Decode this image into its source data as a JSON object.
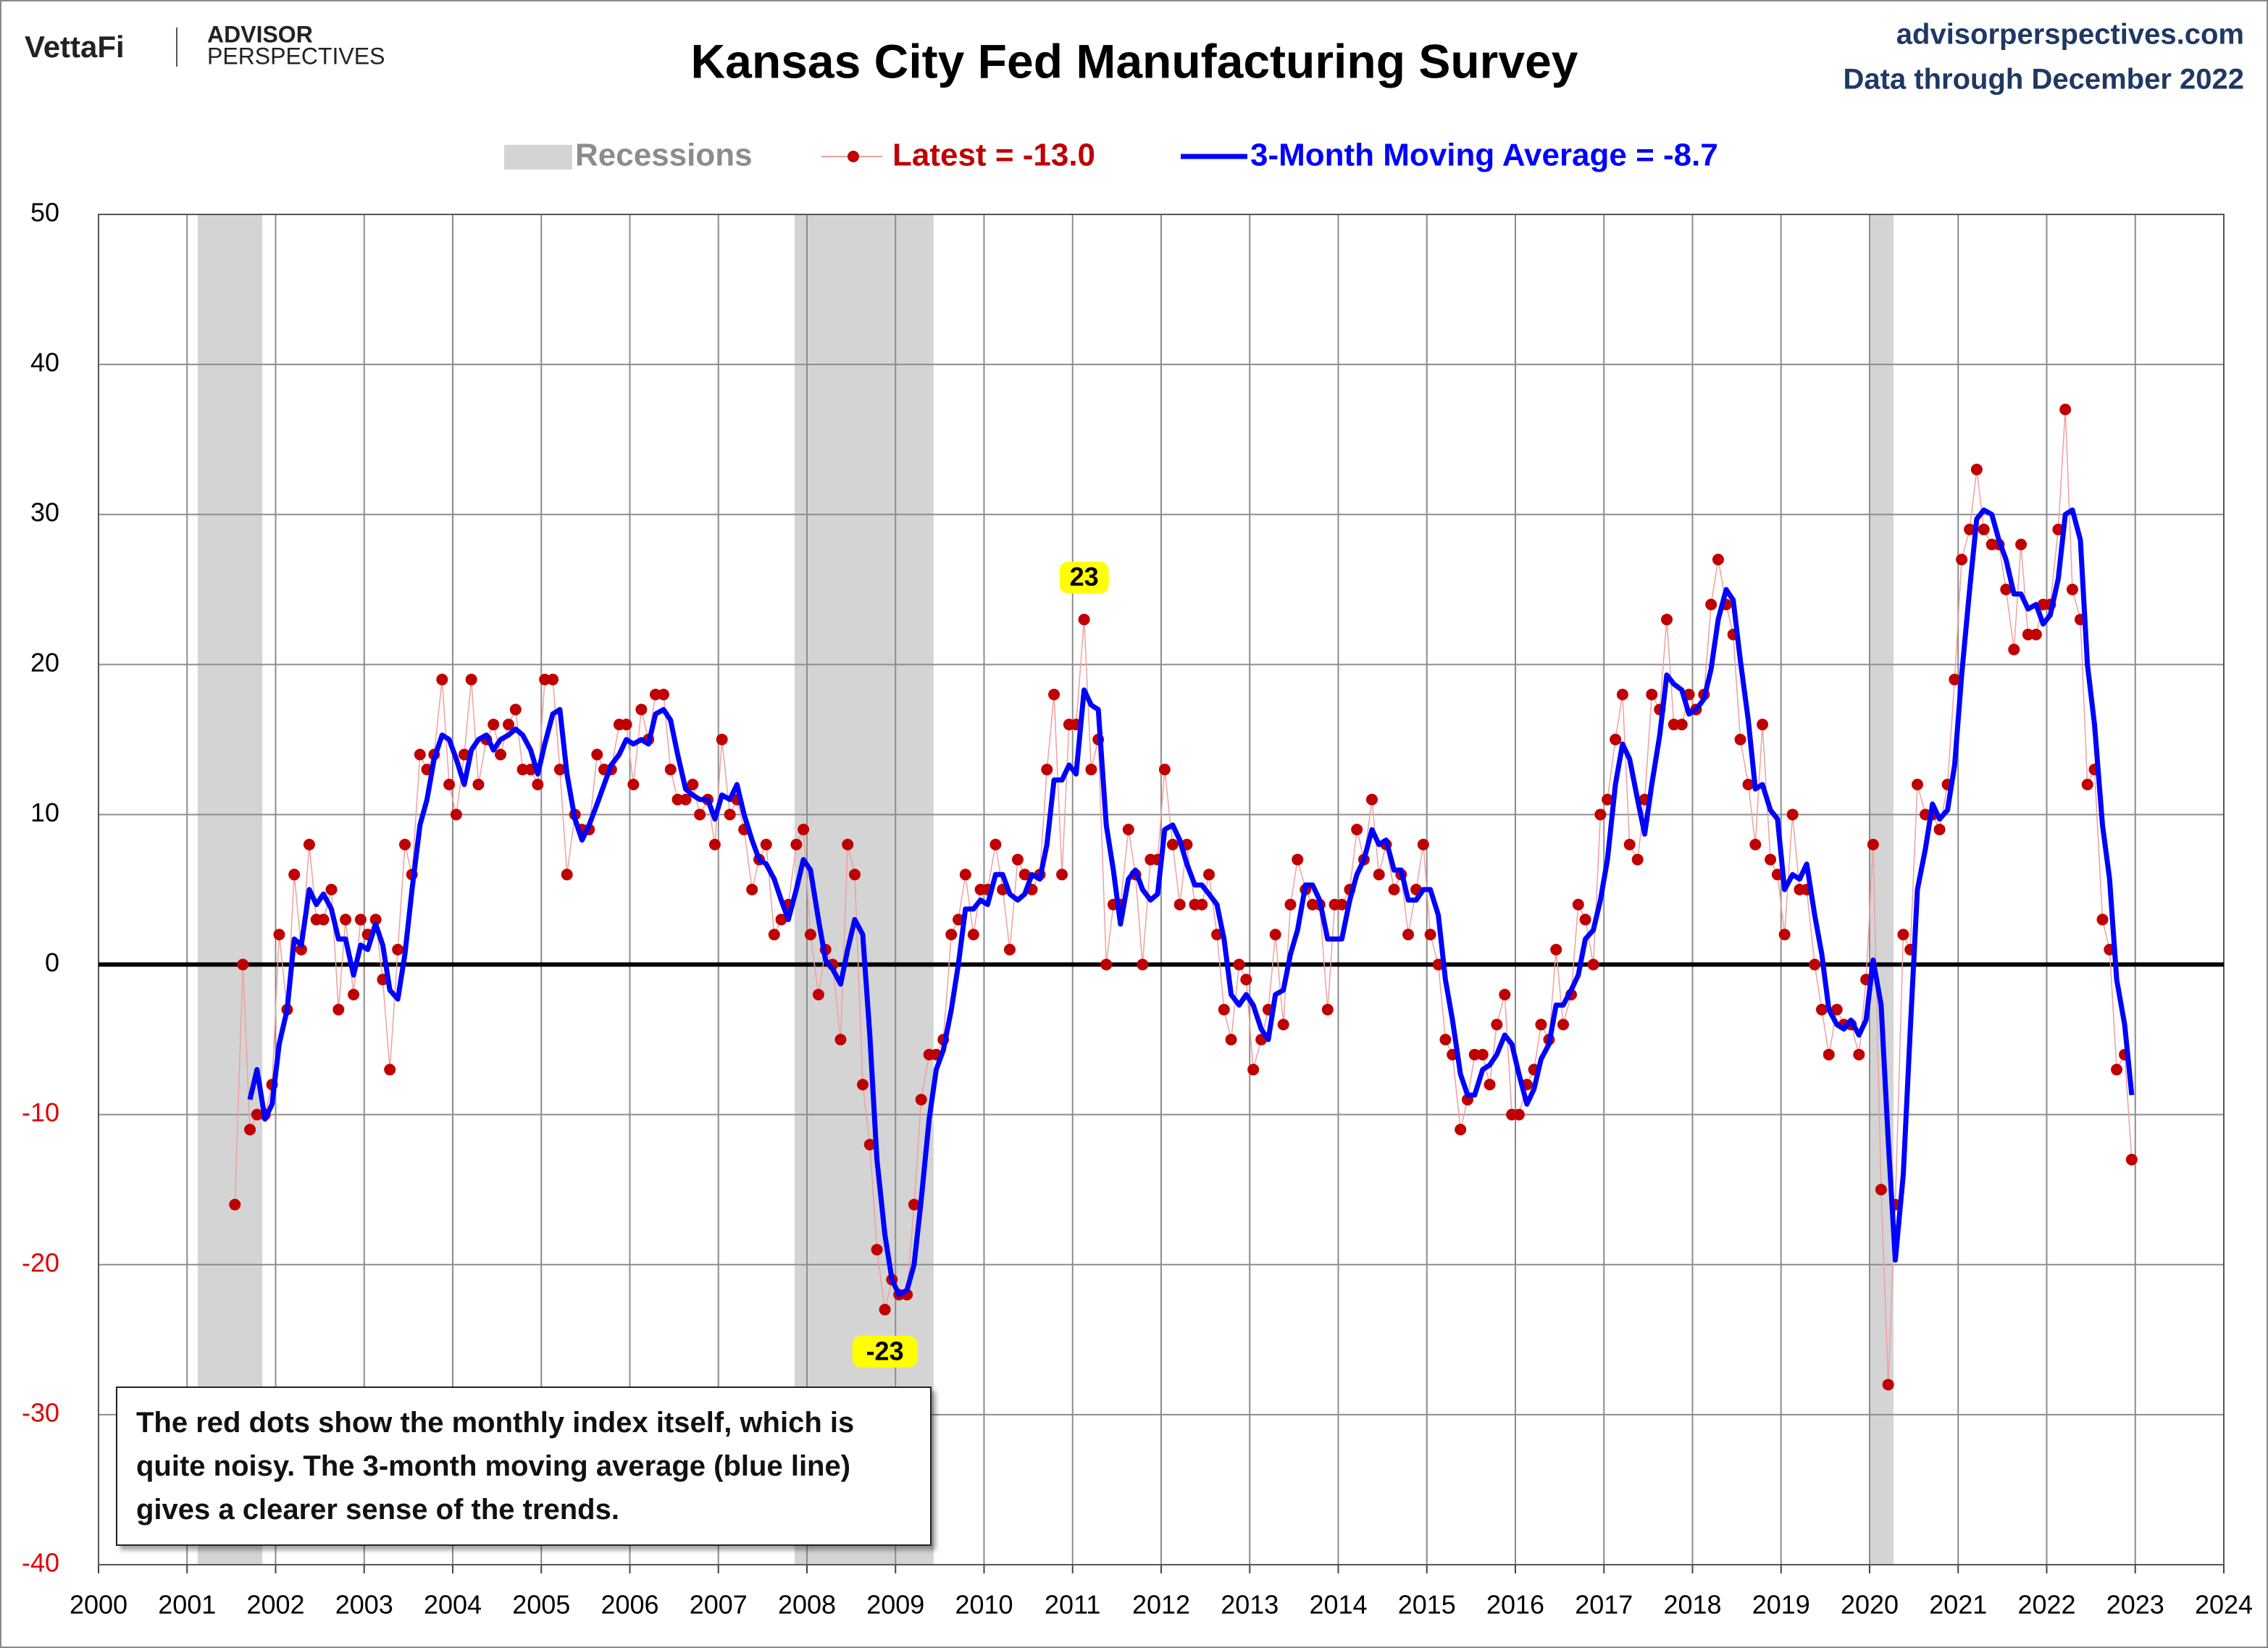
{
  "header": {
    "brand": "VettaFi",
    "brand2_line1": "ADVISOR",
    "brand2_line2": "PERSPECTIVES",
    "site": "advisorperspectives.com",
    "data_through": "Data through December 2022"
  },
  "note": "The red dots show the monthly  index itself, which is quite noisy. The 3-month moving average (blue line) gives a clearer sense of the trends.",
  "chart_data": {
    "type": "line",
    "title": "Kansas City Fed Manufacturing Survey",
    "recession_label": "Recessions",
    "recession_color": "#d4d4d4",
    "recessions": [
      [
        2001.12,
        2001.85
      ],
      [
        2007.86,
        2009.43
      ],
      [
        2020.0,
        2020.27
      ]
    ],
    "xlim": [
      2000,
      2024
    ],
    "xticks": [
      2000,
      2001,
      2002,
      2003,
      2004,
      2005,
      2006,
      2007,
      2008,
      2009,
      2010,
      2011,
      2012,
      2013,
      2014,
      2015,
      2016,
      2017,
      2018,
      2019,
      2020,
      2021,
      2022,
      2023,
      2024
    ],
    "ylim": [
      -40,
      50
    ],
    "yticks": [
      -40,
      -30,
      -20,
      -10,
      0,
      10,
      20,
      30,
      40,
      50
    ],
    "negative_tick_color": "#e00000",
    "grid": true,
    "x": [
      2001.54,
      2001.63,
      2001.71,
      2001.79,
      2001.88,
      2001.96,
      2002.04,
      2002.13,
      2002.21,
      2002.29,
      2002.38,
      2002.46,
      2002.54,
      2002.63,
      2002.71,
      2002.79,
      2002.88,
      2002.96,
      2003.04,
      2003.13,
      2003.21,
      2003.29,
      2003.38,
      2003.46,
      2003.54,
      2003.63,
      2003.71,
      2003.79,
      2003.88,
      2003.96,
      2004.04,
      2004.13,
      2004.21,
      2004.29,
      2004.38,
      2004.46,
      2004.54,
      2004.63,
      2004.71,
      2004.79,
      2004.88,
      2004.96,
      2005.04,
      2005.13,
      2005.21,
      2005.29,
      2005.38,
      2005.46,
      2005.54,
      2005.63,
      2005.71,
      2005.79,
      2005.88,
      2005.96,
      2006.04,
      2006.13,
      2006.21,
      2006.29,
      2006.38,
      2006.46,
      2006.54,
      2006.63,
      2006.71,
      2006.79,
      2006.88,
      2006.96,
      2007.04,
      2007.13,
      2007.21,
      2007.29,
      2007.38,
      2007.46,
      2007.54,
      2007.63,
      2007.71,
      2007.79,
      2007.88,
      2007.96,
      2008.04,
      2008.13,
      2008.21,
      2008.29,
      2008.38,
      2008.46,
      2008.54,
      2008.63,
      2008.71,
      2008.79,
      2008.88,
      2008.96,
      2009.04,
      2009.13,
      2009.21,
      2009.29,
      2009.38,
      2009.46,
      2009.54,
      2009.63,
      2009.71,
      2009.79,
      2009.88,
      2009.96,
      2010.04,
      2010.13,
      2010.21,
      2010.29,
      2010.38,
      2010.46,
      2010.54,
      2010.63,
      2010.71,
      2010.79,
      2010.88,
      2010.96,
      2011.04,
      2011.13,
      2011.21,
      2011.29,
      2011.38,
      2011.46,
      2011.54,
      2011.63,
      2011.71,
      2011.79,
      2011.88,
      2011.96,
      2012.04,
      2012.13,
      2012.21,
      2012.29,
      2012.38,
      2012.46,
      2012.54,
      2012.63,
      2012.71,
      2012.79,
      2012.88,
      2012.96,
      2013.04,
      2013.13,
      2013.21,
      2013.29,
      2013.38,
      2013.46,
      2013.54,
      2013.63,
      2013.71,
      2013.79,
      2013.88,
      2013.96,
      2014.04,
      2014.13,
      2014.21,
      2014.29,
      2014.38,
      2014.46,
      2014.54,
      2014.63,
      2014.71,
      2014.79,
      2014.88,
      2014.96,
      2015.04,
      2015.13,
      2015.21,
      2015.29,
      2015.38,
      2015.46,
      2015.54,
      2015.63,
      2015.71,
      2015.79,
      2015.88,
      2015.96,
      2016.04,
      2016.13,
      2016.21,
      2016.29,
      2016.38,
      2016.46,
      2016.54,
      2016.63,
      2016.71,
      2016.79,
      2016.88,
      2016.96,
      2017.04,
      2017.13,
      2017.21,
      2017.29,
      2017.38,
      2017.46,
      2017.54,
      2017.63,
      2017.71,
      2017.79,
      2017.88,
      2017.96,
      2018.04,
      2018.13,
      2018.21,
      2018.29,
      2018.38,
      2018.46,
      2018.54,
      2018.63,
      2018.71,
      2018.79,
      2018.88,
      2018.96,
      2019.04,
      2019.13,
      2019.21,
      2019.29,
      2019.38,
      2019.46,
      2019.54,
      2019.63,
      2019.71,
      2019.79,
      2019.88,
      2019.96,
      2020.04,
      2020.13,
      2020.21,
      2020.29,
      2020.38,
      2020.46,
      2020.54,
      2020.63,
      2020.71,
      2020.79,
      2020.88,
      2020.96,
      2021.04,
      2021.13,
      2021.21,
      2021.29,
      2021.38,
      2021.46,
      2021.54,
      2021.63,
      2021.71,
      2021.79,
      2021.88,
      2021.96,
      2022.04,
      2022.13,
      2022.21,
      2022.29,
      2022.38,
      2022.46,
      2022.54,
      2022.63,
      2022.71,
      2022.79,
      2022.88,
      2022.96
    ],
    "series": [
      {
        "name": "Latest = -13.0",
        "color": "#c00000",
        "line_color": "#f0a0a0",
        "style": "dots",
        "values": [
          -16,
          0,
          -11,
          -10,
          -10,
          -8,
          2,
          -3,
          6,
          1,
          8,
          3,
          3,
          5,
          -3,
          3,
          -2,
          3,
          2,
          3,
          -1,
          -7,
          1,
          8,
          6,
          14,
          13,
          14,
          19,
          12,
          10,
          14,
          19,
          12,
          15,
          16,
          14,
          16,
          17,
          13,
          13,
          12,
          19,
          19,
          13,
          6,
          10,
          9,
          9,
          14,
          13,
          13,
          16,
          16,
          12,
          17,
          15,
          18,
          18,
          13,
          11,
          11,
          12,
          10,
          11,
          8,
          15,
          10,
          11,
          9,
          5,
          7,
          8,
          2,
          3,
          4,
          8,
          9,
          2,
          -2,
          1,
          0,
          -5,
          8,
          6,
          -8,
          -12,
          -19,
          -23,
          -21,
          -22,
          -22,
          -16,
          -9,
          -6,
          -6,
          -5,
          2,
          3,
          6,
          2,
          5,
          5,
          8,
          5,
          1,
          7,
          6,
          5,
          6,
          13,
          18,
          6,
          16,
          16,
          23,
          13,
          15,
          0,
          4,
          4,
          9,
          6,
          0,
          7,
          7,
          13,
          8,
          4,
          8,
          4,
          4,
          6,
          2,
          -3,
          -5,
          0,
          -1,
          -7,
          -5,
          -3,
          2,
          -4,
          4,
          7,
          5,
          4,
          4,
          -3,
          4,
          4,
          5,
          9,
          7,
          11,
          6,
          8,
          5,
          6,
          2,
          5,
          8,
          2,
          0,
          -5,
          -6,
          -11,
          -9,
          -6,
          -6,
          -8,
          -4,
          -2,
          -10,
          -10,
          -8,
          -7,
          -4,
          -5,
          1,
          -4,
          -2,
          4,
          3,
          0,
          10,
          11,
          15,
          18,
          8,
          7,
          11,
          18,
          17,
          23,
          16,
          16,
          18,
          17,
          18,
          24,
          27,
          24,
          22,
          15,
          12,
          8,
          16,
          7,
          6,
          2,
          10,
          5,
          5,
          0,
          -3,
          -6,
          -3,
          -4,
          -4,
          -6,
          -1,
          8,
          -15,
          -28,
          -16,
          2,
          1,
          12,
          10,
          10,
          9,
          12,
          19,
          27,
          29,
          33,
          29,
          28,
          28,
          25,
          21,
          28,
          22,
          22,
          24,
          24,
          29,
          37,
          25,
          23,
          12,
          13,
          3,
          1,
          -7,
          -6,
          -13
        ]
      },
      {
        "name": "3-Month Moving Average = -8.7",
        "color": "#0000ff",
        "style": "line",
        "values": [
          null,
          null,
          -9,
          -7,
          -10.3,
          -9.3,
          -5.3,
          -3,
          1.7,
          1.3,
          5,
          4,
          4.7,
          3.7,
          1.7,
          1.7,
          -0.7,
          1.3,
          1,
          2.7,
          1.3,
          -1.7,
          -2.3,
          0.7,
          5,
          9.3,
          11,
          13.7,
          15.3,
          15,
          13.7,
          12,
          14.3,
          15,
          15.3,
          14.3,
          15,
          15.3,
          15.7,
          15.3,
          14.3,
          12.7,
          14.7,
          16.7,
          17,
          12.7,
          9.7,
          8.3,
          9.3,
          10.7,
          12,
          13.3,
          14,
          15,
          14.7,
          15,
          14.7,
          16.7,
          17,
          16.3,
          14,
          11.7,
          11.3,
          11,
          11,
          9.7,
          11.3,
          11,
          12,
          10,
          8.3,
          7,
          6.7,
          5.7,
          4.3,
          3,
          5,
          7,
          6.3,
          3,
          0.3,
          -0.3,
          -1.3,
          1,
          3,
          2,
          -4.7,
          -13,
          -18,
          -21,
          -22,
          -21.7,
          -20,
          -15.7,
          -10.3,
          -7,
          -5.7,
          -3,
          0,
          3.7,
          3.7,
          4.3,
          4,
          6,
          6,
          4.7,
          4.3,
          4.7,
          6,
          5.7,
          8,
          12.3,
          12.3,
          13.3,
          12.7,
          18.3,
          17.3,
          17,
          9.3,
          6.3,
          2.7,
          5.7,
          6.3,
          5,
          4.3,
          4.7,
          9,
          9.3,
          8.3,
          6.7,
          5.3,
          5.3,
          4.7,
          4,
          1.7,
          -2,
          -2.7,
          -2,
          -2.7,
          -4.3,
          -5,
          -2,
          -1.7,
          0.7,
          2.3,
          5.3,
          5.3,
          4.3,
          1.7,
          1.7,
          1.7,
          4.3,
          6,
          7,
          9,
          8,
          8.3,
          6.3,
          6.3,
          4.3,
          4.3,
          5,
          5,
          3.3,
          -1,
          -3.7,
          -7.3,
          -8.7,
          -8.7,
          -7,
          -6.7,
          -6,
          -4.7,
          -5.3,
          -7.3,
          -9.3,
          -8.3,
          -6.3,
          -5.3,
          -2.7,
          -2.7,
          -1.7,
          -0.7,
          1.7,
          2.3,
          4.3,
          7,
          12,
          14.7,
          13.7,
          11,
          8.7,
          12,
          15.3,
          19.3,
          18.7,
          18.3,
          16.7,
          17,
          17.7,
          19.7,
          23,
          25,
          24.3,
          20.3,
          16.3,
          11.7,
          12,
          10.3,
          9.7,
          5,
          6,
          5.7,
          6.7,
          3.3,
          0.7,
          -3,
          -4,
          -4.3,
          -3.7,
          -4.7,
          -3.7,
          0.3,
          -2.7,
          -11.7,
          -19.7,
          -14,
          -4.3,
          5,
          7.7,
          10.7,
          9.7,
          10.3,
          13.3,
          19.3,
          25,
          29.7,
          30.3,
          30,
          28.3,
          27,
          24.7,
          24.7,
          23.7,
          24,
          22.7,
          23.3,
          25.7,
          30,
          30.3,
          28.3,
          20,
          16,
          9.3,
          5.7,
          -1,
          -4,
          -8.7
        ]
      }
    ],
    "annotations": [
      {
        "label": "23",
        "x": 2011.13,
        "y": 23
      },
      {
        "label": "-23",
        "x": 2008.88,
        "y": -23
      }
    ],
    "annotation_color": "#ffff00"
  }
}
